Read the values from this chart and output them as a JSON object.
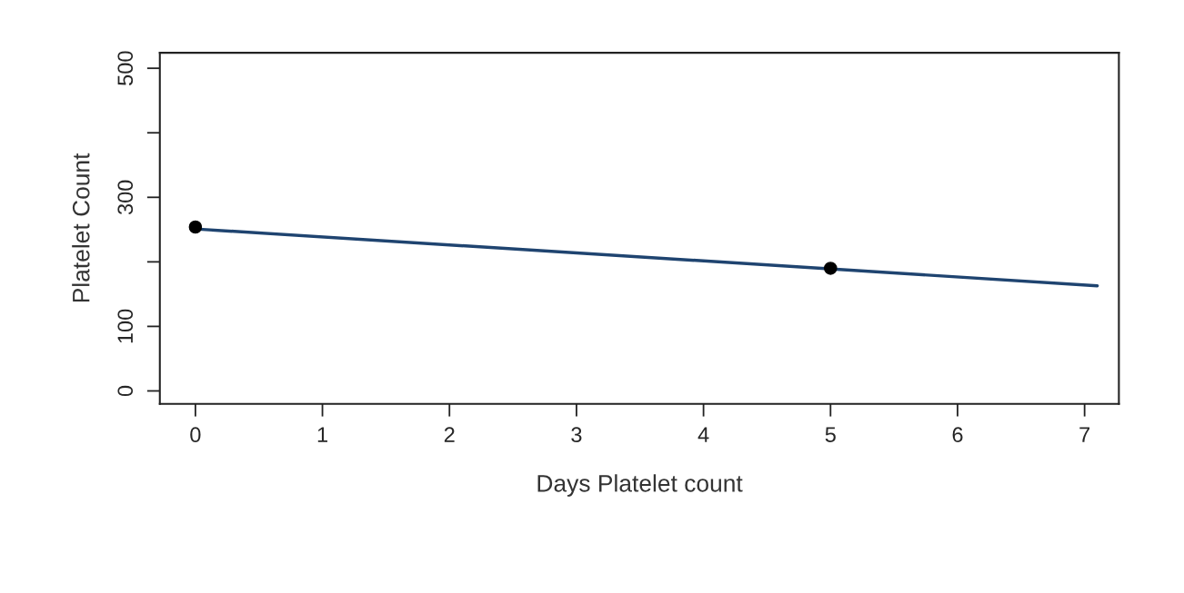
{
  "chart_data": {
    "type": "scatter",
    "xlabel": "Days Platelet count",
    "ylabel": "Platelet Count",
    "xlim": [
      -0.28,
      7.27
    ],
    "ylim": [
      -20,
      524
    ],
    "xticks": [
      0,
      1,
      2,
      3,
      4,
      5,
      6,
      7
    ],
    "yticks": [
      0,
      100,
      {
        "value": 200,
        "label": null
      },
      300,
      {
        "value": 400,
        "label": null
      },
      500
    ],
    "grid": false,
    "legend": false,
    "series": [
      {
        "color": "#000000",
        "marker": "circle",
        "x": [
          0,
          5
        ],
        "values": [
          254,
          190
        ]
      },
      {
        "type": "line",
        "color": "#1f4470",
        "marker": "none",
        "line_style": "solid",
        "x": [
          0,
          7.1
        ],
        "values": [
          251,
          163
        ]
      }
    ]
  }
}
